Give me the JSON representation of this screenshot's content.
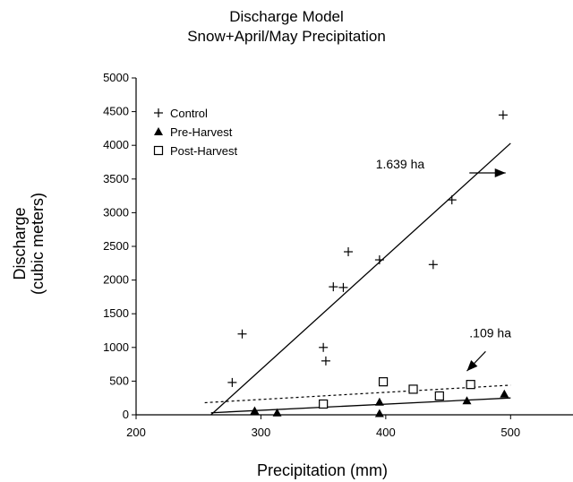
{
  "chart_data": {
    "type": "scatter",
    "title": "Discharge Model",
    "subtitle": "Snow+April/May Precipitation",
    "xlabel": "Precipitation (mm)",
    "ylabel_line1": "Discharge",
    "ylabel_line2": "(cubic meters)",
    "xlim": [
      200,
      550
    ],
    "ylim": [
      0,
      5000
    ],
    "x_ticks": [
      200,
      300,
      400,
      500
    ],
    "y_ticks": [
      0,
      500,
      1000,
      1500,
      2000,
      2500,
      3000,
      3500,
      4000,
      4500,
      5000
    ],
    "grid": false,
    "legend_position": "top-left",
    "series": [
      {
        "name": "Control",
        "marker": "plus",
        "points": [
          [
            277,
            480
          ],
          [
            285,
            1200
          ],
          [
            350,
            1000
          ],
          [
            352,
            800
          ],
          [
            358,
            1900
          ],
          [
            366,
            1890
          ],
          [
            370,
            2420
          ],
          [
            395,
            2300
          ],
          [
            438,
            2230
          ],
          [
            453,
            3190
          ],
          [
            494,
            4450
          ]
        ]
      },
      {
        "name": "Pre-Harvest",
        "marker": "triangle",
        "points": [
          [
            295,
            60
          ],
          [
            313,
            30
          ],
          [
            395,
            190
          ],
          [
            395,
            20
          ],
          [
            465,
            210
          ],
          [
            495,
            310
          ]
        ]
      },
      {
        "name": "Post-Harvest",
        "marker": "square",
        "points": [
          [
            350,
            160
          ],
          [
            398,
            490
          ],
          [
            422,
            380
          ],
          [
            443,
            280
          ],
          [
            468,
            450
          ]
        ]
      }
    ],
    "fit_lines": [
      {
        "series": "Control",
        "style": "solid",
        "from": [
          260,
          0
        ],
        "to": [
          500,
          4030
        ]
      },
      {
        "series": "Pre-Harvest",
        "style": "solid",
        "from": [
          260,
          30
        ],
        "to": [
          500,
          250
        ]
      },
      {
        "series": "Post-Harvest",
        "style": "dotted",
        "from": [
          255,
          180
        ],
        "to": [
          500,
          440
        ]
      }
    ],
    "annotations": [
      {
        "text": "1.639 ha",
        "x": 392,
        "y": 3660,
        "arrow_from": [
          467,
          3590
        ],
        "arrow_to": [
          496,
          3590
        ]
      },
      {
        "text": ".109 ha",
        "x": 467,
        "y": 1150,
        "arrow_from": [
          480,
          940
        ],
        "arrow_to": [
          465,
          650
        ]
      }
    ]
  }
}
